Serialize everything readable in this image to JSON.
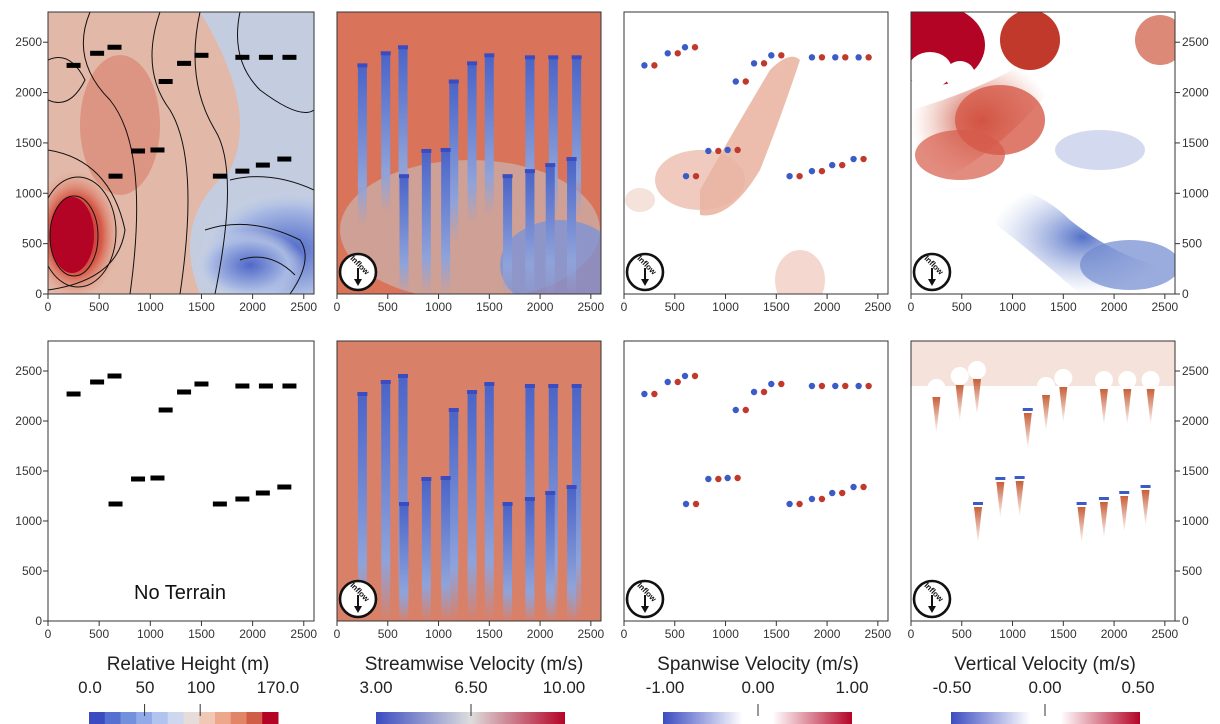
{
  "chart_data": {
    "type": "heatmap",
    "layout": "2 rows x 4 columns",
    "rows": [
      "with terrain",
      "without terrain"
    ],
    "x_ticks": [
      0,
      500,
      1000,
      1500,
      2000,
      2500
    ],
    "y_ticks": [
      0,
      500,
      1000,
      1500,
      2000,
      2500
    ],
    "xlim": [
      0,
      2600
    ],
    "ylim": [
      0,
      2800
    ],
    "annotations": {
      "inflow_label": "Inflow",
      "no_terrain_label": "No Terrain"
    },
    "colorbars": [
      {
        "title": "Relative Height (m)",
        "min_label": "0.0",
        "ticks": [
          "50",
          "100"
        ],
        "max_label": "170.0",
        "min": 0,
        "max": 170,
        "tick_values": [
          50,
          100
        ],
        "style": "discrete"
      },
      {
        "title": "Streamwise Velocity (m/s)",
        "min_label": "3.00",
        "ticks": [
          "6.50"
        ],
        "max_label": "10.00",
        "min": 3,
        "max": 10,
        "tick_values": [
          6.5
        ],
        "style": "continuous"
      },
      {
        "title": "Spanwise Velocity (m/s)",
        "min_label": "-1.00",
        "ticks": [
          "0.00"
        ],
        "max_label": "1.00",
        "min": -1,
        "max": 1,
        "tick_values": [
          0
        ],
        "style": "diverging"
      },
      {
        "title": "Vertical Velocity (m/s)",
        "min_label": "-0.50",
        "ticks": [
          "0.00"
        ],
        "max_label": "0.50",
        "min": -0.5,
        "max": 0.5,
        "tick_values": [
          0
        ],
        "style": "diverging"
      }
    ],
    "turbines": [
      {
        "x": 250,
        "y": 2270
      },
      {
        "x": 480,
        "y": 2390
      },
      {
        "x": 650,
        "y": 2450
      },
      {
        "x": 1150,
        "y": 2110
      },
      {
        "x": 1330,
        "y": 2290
      },
      {
        "x": 1500,
        "y": 2370
      },
      {
        "x": 1900,
        "y": 2350
      },
      {
        "x": 2130,
        "y": 2350
      },
      {
        "x": 2360,
        "y": 2350
      },
      {
        "x": 660,
        "y": 1170
      },
      {
        "x": 880,
        "y": 1420
      },
      {
        "x": 1070,
        "y": 1430
      },
      {
        "x": 1680,
        "y": 1170
      },
      {
        "x": 1900,
        "y": 1220
      },
      {
        "x": 2100,
        "y": 1280
      },
      {
        "x": 2310,
        "y": 1340
      }
    ]
  }
}
